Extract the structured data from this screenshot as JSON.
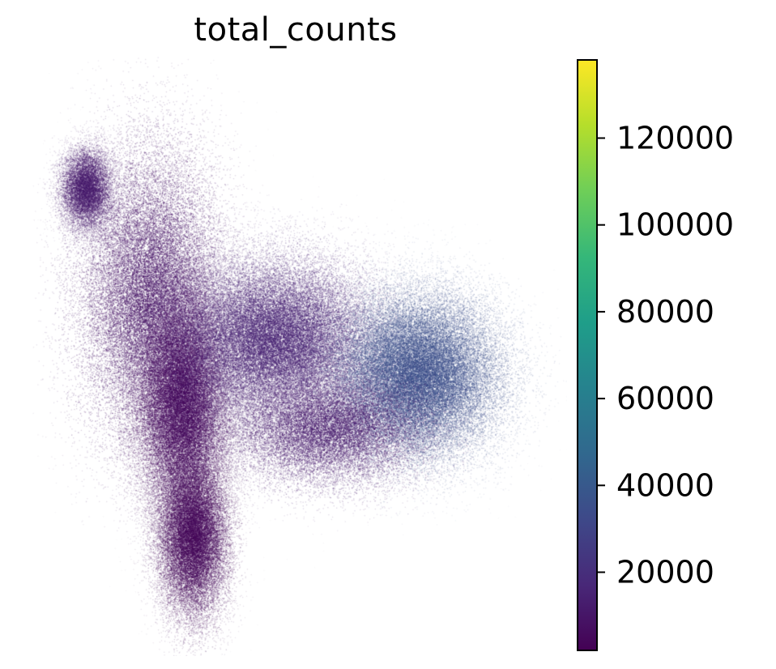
{
  "chart_data": {
    "type": "scatter",
    "title": "total_counts",
    "xlabel": "",
    "ylabel": "",
    "colorbar": {
      "colormap": "viridis",
      "range": [
        2000,
        138000
      ],
      "ticks": [
        20000,
        40000,
        60000,
        80000,
        100000,
        120000
      ],
      "tick_labels": [
        "20000",
        "40000",
        "60000",
        "80000",
        "100000",
        "120000"
      ]
    },
    "clusters": [
      {
        "center": [
          0.1,
          0.78
        ],
        "spread": [
          0.025,
          0.035
        ],
        "value": 12000,
        "density": 0.05
      },
      {
        "center": [
          0.22,
          0.6
        ],
        "spread": [
          0.07,
          0.13
        ],
        "value": 9000,
        "density": 0.15
      },
      {
        "center": [
          0.28,
          0.42
        ],
        "spread": [
          0.045,
          0.1
        ],
        "value": 5000,
        "density": 0.18
      },
      {
        "center": [
          0.3,
          0.2
        ],
        "spread": [
          0.035,
          0.07
        ],
        "value": 4000,
        "density": 0.12
      },
      {
        "center": [
          0.45,
          0.53
        ],
        "spread": [
          0.1,
          0.07
        ],
        "value": 15000,
        "density": 0.2
      },
      {
        "center": [
          0.72,
          0.47
        ],
        "spread": [
          0.08,
          0.07
        ],
        "value": 35000,
        "density": 0.2
      },
      {
        "center": [
          0.55,
          0.38
        ],
        "spread": [
          0.1,
          0.05
        ],
        "value": 12000,
        "density": 0.1
      }
    ]
  },
  "colors": {
    "viridis_stops": [
      "#440154",
      "#482878",
      "#3e4989",
      "#31688e",
      "#26828e",
      "#1f9e89",
      "#35b779",
      "#6ece58",
      "#b5de2b",
      "#fde725"
    ],
    "colorbar_border": "#000000"
  }
}
